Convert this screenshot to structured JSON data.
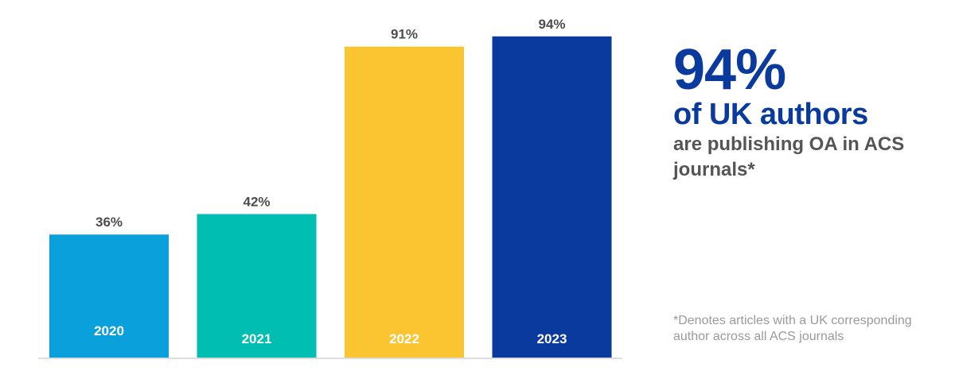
{
  "chart_data": {
    "type": "bar",
    "categories": [
      "2020",
      "2021",
      "2022",
      "2023"
    ],
    "values": [
      36,
      42,
      91,
      94
    ],
    "value_labels": [
      "36%",
      "42%",
      "91%",
      "94%"
    ],
    "colors": [
      "#0aa0dc",
      "#00bfb2",
      "#fbc531",
      "#0a3a9e"
    ],
    "ylim": [
      0,
      100
    ],
    "grid": false,
    "axis_line_color": "#dddddd"
  },
  "headline": {
    "big": "94%",
    "mid": "of UK authors",
    "sub": "are publishing OA in ACS journals*"
  },
  "footnote": "*Denotes articles with a UK corresponding author across all ACS journals"
}
